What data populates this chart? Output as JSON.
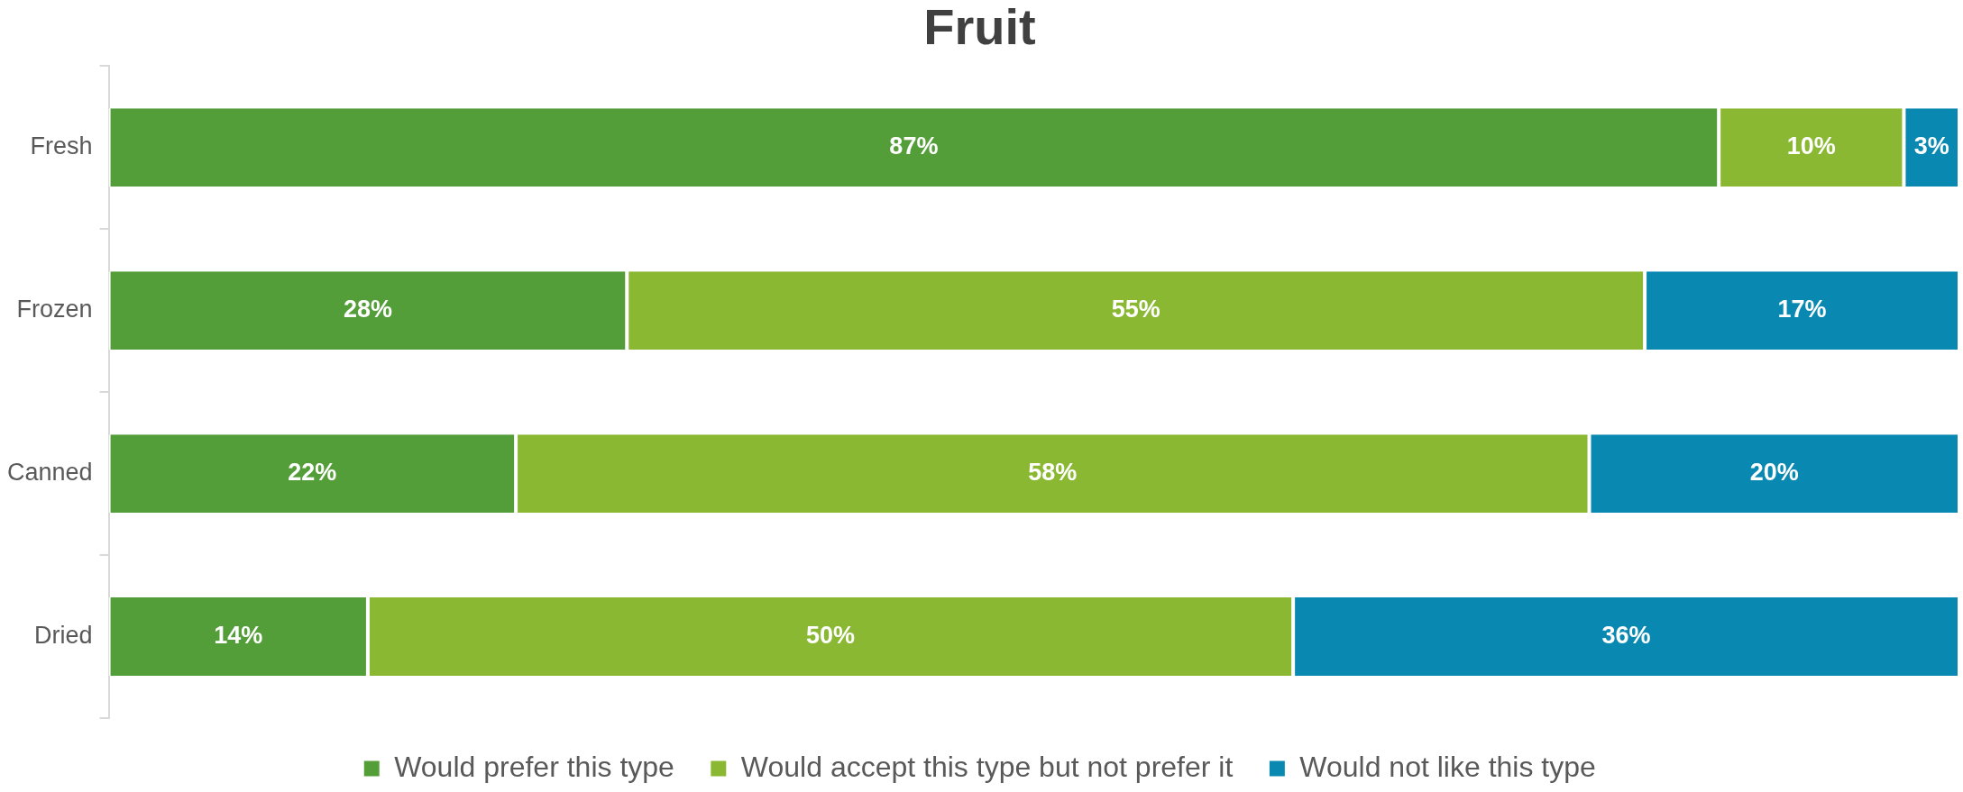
{
  "chart_data": {
    "type": "bar",
    "title": "Fruit",
    "orientation": "horizontal",
    "stacked": true,
    "categories": [
      "Fresh",
      "Frozen",
      "Canned",
      "Dried"
    ],
    "series": [
      {
        "name": "Would prefer this type",
        "color": "#549e39",
        "values": [
          87,
          28,
          22,
          14
        ],
        "value_labels": [
          "87%",
          "28%",
          "22%",
          "14%"
        ]
      },
      {
        "name": "Would accept this type but not prefer it",
        "color": "#8ab833",
        "values": [
          10,
          55,
          58,
          50
        ],
        "value_labels": [
          "10%",
          "55%",
          "58%",
          "50%"
        ]
      },
      {
        "name": "Would not like this type",
        "color": "#0989b1",
        "values": [
          3,
          17,
          20,
          36
        ],
        "value_labels": [
          "3%",
          "17%",
          "20%",
          "36%"
        ]
      }
    ],
    "legend": "bottom",
    "tick_labels": "y"
  }
}
